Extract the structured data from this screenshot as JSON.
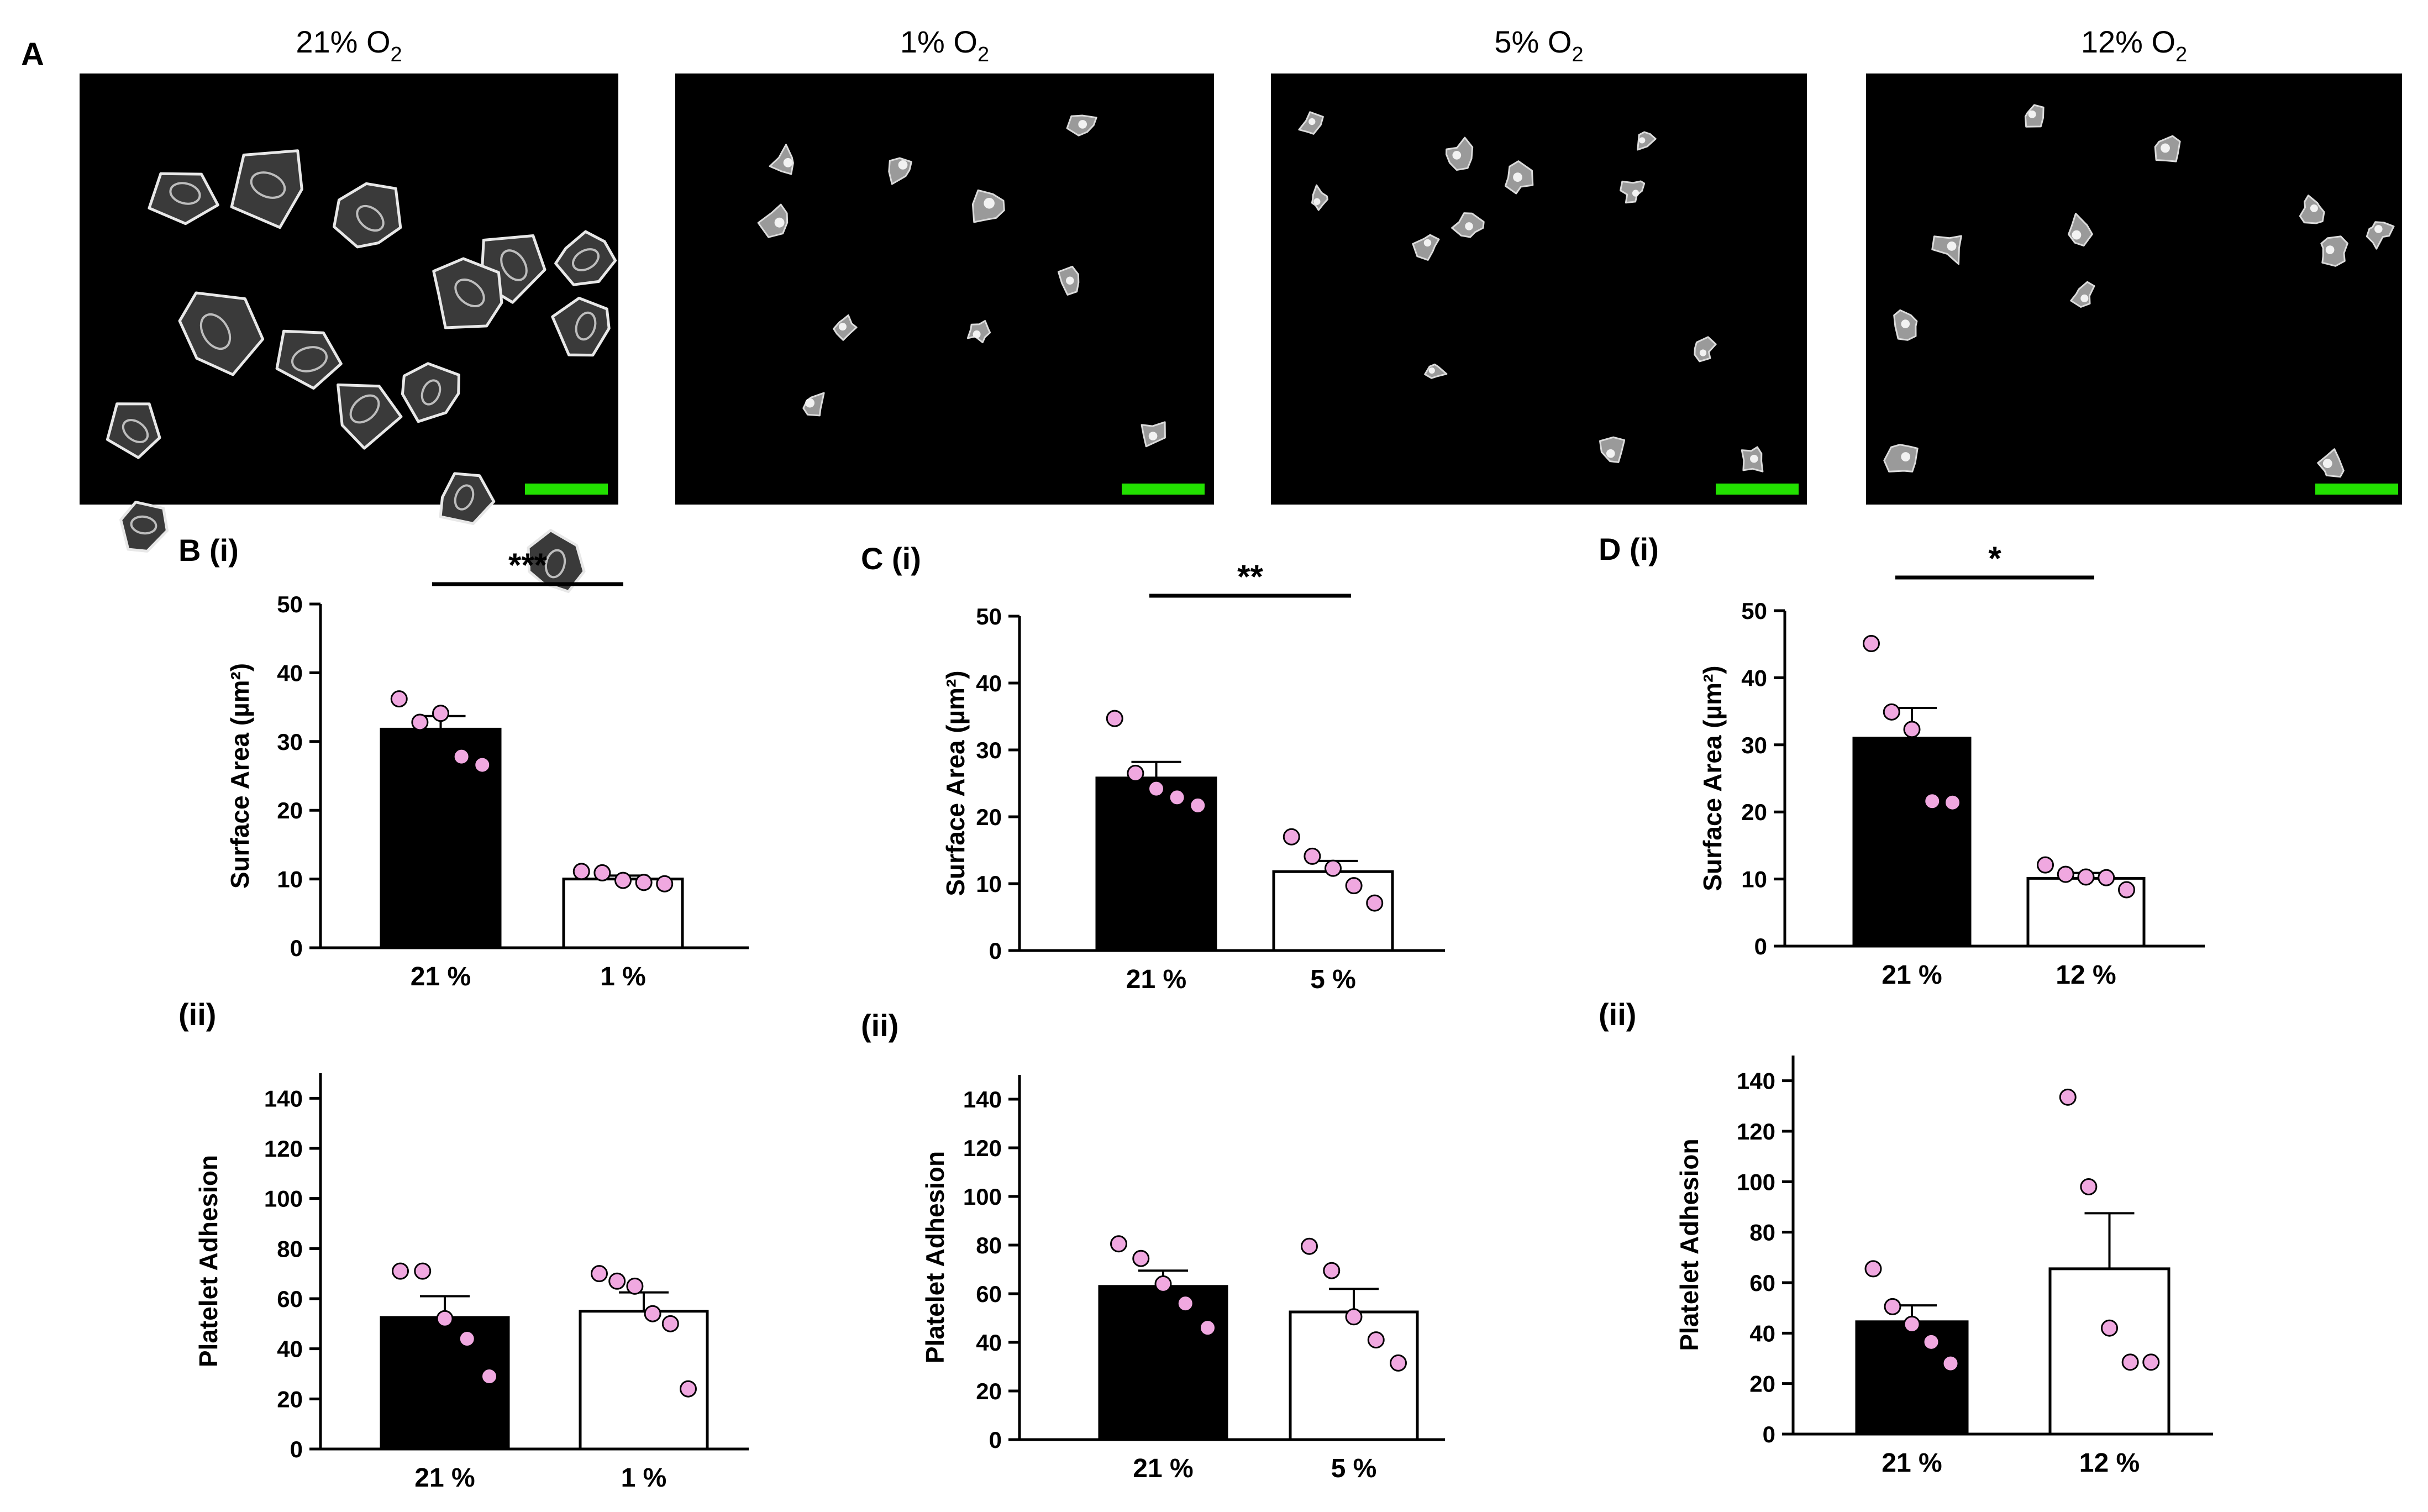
{
  "figure": {
    "panel_a": {
      "letter": "A",
      "images": [
        {
          "title": "21% O",
          "sub": "2",
          "content": "spread platelets"
        },
        {
          "title": "1% O",
          "sub": "2",
          "content": "small platelets"
        },
        {
          "title": "5% O",
          "sub": "2",
          "content": "small platelets"
        },
        {
          "title": "12% O",
          "sub": "2",
          "content": "small platelets"
        }
      ],
      "scale_bar_color": "#22e000",
      "image_background": "#000000"
    },
    "colors": {
      "bar_21": "#000000",
      "bar_other": "#ffffff",
      "dot": "#f0a8e0",
      "dot_stroke": "#000000"
    }
  },
  "chart_data": [
    {
      "id": "B-i",
      "type": "bar",
      "panel_label": "B (i)",
      "ylabel": "Surface Area (µm²)",
      "ylim": [
        0,
        50
      ],
      "yticks": [
        "0",
        "10",
        "20",
        "30",
        "40",
        "50"
      ],
      "categories": [
        "21 %",
        "1 %"
      ],
      "values": [
        31.8,
        10.0
      ],
      "sem": [
        1.9,
        0.5
      ],
      "points": [
        [
          36.2,
          32.8,
          34.1,
          27.8,
          26.6
        ],
        [
          11.1,
          10.9,
          9.8,
          9.5,
          9.3
        ]
      ],
      "significance": "***"
    },
    {
      "id": "C-i",
      "type": "bar",
      "panel_label": "C (i)",
      "ylabel": "Surface Area (µm²)",
      "ylim": [
        0,
        50
      ],
      "yticks": [
        "0",
        "10",
        "20",
        "30",
        "40",
        "50"
      ],
      "categories": [
        "21 %",
        "5 %"
      ],
      "values": [
        25.8,
        11.8
      ],
      "sem": [
        2.4,
        1.6
      ],
      "points": [
        [
          34.7,
          26.5,
          24.2,
          22.9,
          21.7
        ],
        [
          17.0,
          14.1,
          12.3,
          9.7,
          7.1
        ]
      ],
      "significance": "**"
    },
    {
      "id": "D-i",
      "type": "bar",
      "panel_label": "D (i)",
      "ylabel": "Surface Area (µm²)",
      "ylim": [
        0,
        50
      ],
      "yticks": [
        "0",
        "10",
        "20",
        "30",
        "40",
        "50"
      ],
      "categories": [
        "21 %",
        "12 %"
      ],
      "values": [
        31.0,
        10.1
      ],
      "sem": [
        4.5,
        0.8
      ],
      "points": [
        [
          45.1,
          34.9,
          32.3,
          21.6,
          21.4
        ],
        [
          12.1,
          10.7,
          10.3,
          10.2,
          8.4
        ]
      ],
      "significance": "*"
    },
    {
      "id": "B-ii",
      "type": "bar",
      "panel_label": "(ii)",
      "ylabel": "Platelet Adhesion",
      "ylim": [
        0,
        150
      ],
      "yticks": [
        "0",
        "20",
        "40",
        "60",
        "80",
        "100",
        "120",
        "140"
      ],
      "categories": [
        "21 %",
        "1 %"
      ],
      "values": [
        52.5,
        55.0
      ],
      "sem": [
        8.5,
        7.5
      ],
      "points": [
        [
          71.0,
          71.0,
          52.0,
          44.0,
          29.0
        ],
        [
          70.0,
          67.0,
          65.0,
          54.0,
          50.0,
          24.0
        ]
      ]
    },
    {
      "id": "C-ii",
      "type": "bar",
      "panel_label": "(ii)",
      "ylabel": "Platelet Adhesion",
      "ylim": [
        0,
        150
      ],
      "yticks": [
        "0",
        "20",
        "40",
        "60",
        "80",
        "100",
        "120",
        "140"
      ],
      "categories": [
        "21 %",
        "5 %"
      ],
      "values": [
        63.0,
        52.5
      ],
      "sem": [
        6.5,
        9.5
      ],
      "points": [
        [
          80.5,
          74.5,
          64.0,
          56.0,
          46.0
        ],
        [
          79.5,
          69.5,
          50.5,
          41.0,
          31.5
        ]
      ]
    },
    {
      "id": "D-ii",
      "type": "bar",
      "panel_label": "(ii)",
      "ylabel": "Platelet Adhesion",
      "ylim": [
        0,
        150
      ],
      "yticks": [
        "0",
        "20",
        "40",
        "60",
        "80",
        "100",
        "120",
        "140"
      ],
      "categories": [
        "21 %",
        "12 %"
      ],
      "values": [
        44.5,
        65.5
      ],
      "sem": [
        6.5,
        22.0
      ],
      "points": [
        [
          65.5,
          50.5,
          43.5,
          36.5,
          28.0
        ],
        [
          133.5,
          98.0,
          42.0,
          28.5,
          28.5
        ]
      ]
    }
  ]
}
